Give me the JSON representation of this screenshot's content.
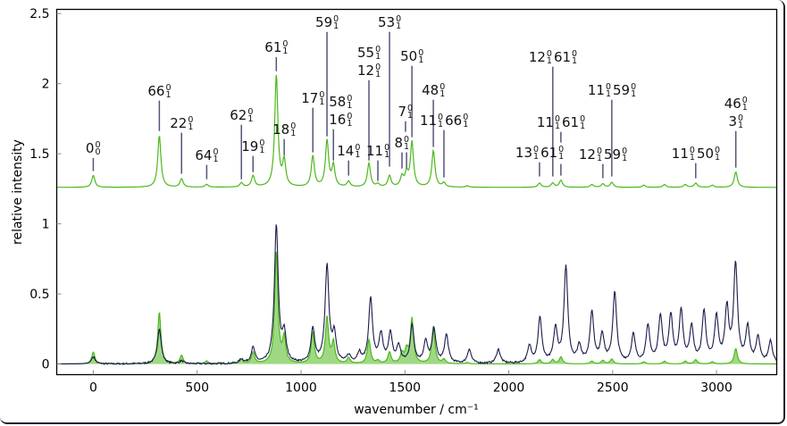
{
  "chart_data": {
    "type": "line",
    "xlabel": "wavenumber / cm⁻¹",
    "ylabel": "relative intensity",
    "xlim": [
      -176,
      3290
    ],
    "ylim": [
      -0.076,
      2.53
    ],
    "xticks": [
      "0",
      "500",
      "1000",
      "1500",
      "2000",
      "2500",
      "3000"
    ],
    "yticks": [
      "0",
      "0.5",
      "1",
      "1.5",
      "2",
      "2.5"
    ],
    "grid": false,
    "colors": {
      "simulated": "#4cb81c",
      "simulated_fill": "#9fd883",
      "experimental": "#1b1b4b",
      "annotation": "#55557a"
    },
    "simulated_offset": 1.26,
    "simulated_hwhm": 9,
    "simulated_peaks": [
      [
        0,
        0.085
      ],
      [
        318,
        0.37
      ],
      [
        425,
        0.06
      ],
      [
        546,
        0.02
      ],
      [
        713,
        0.03
      ],
      [
        769,
        0.08
      ],
      [
        881,
        0.8
      ],
      [
        919,
        0.18
      ],
      [
        1057,
        0.22
      ],
      [
        1125,
        0.33
      ],
      [
        1156,
        0.15
      ],
      [
        1229,
        0.04
      ],
      [
        1327,
        0.17
      ],
      [
        1370,
        0.02
      ],
      [
        1426,
        0.08
      ],
      [
        1486,
        0.07
      ],
      [
        1508,
        0.09
      ],
      [
        1534,
        0.32
      ],
      [
        1637,
        0.26
      ],
      [
        1688,
        0.03
      ],
      [
        1800,
        0.01
      ],
      [
        2148,
        0.03
      ],
      [
        2212,
        0.03
      ],
      [
        2251,
        0.05
      ],
      [
        2400,
        0.02
      ],
      [
        2453,
        0.025
      ],
      [
        2496,
        0.035
      ],
      [
        2650,
        0.015
      ],
      [
        2750,
        0.02
      ],
      [
        2850,
        0.02
      ],
      [
        2900,
        0.03
      ],
      [
        2980,
        0.015
      ],
      [
        3093,
        0.11
      ]
    ],
    "experimental_hwhm": 11,
    "experimental_peaks": [
      [
        0,
        0.05
      ],
      [
        318,
        0.25
      ],
      [
        425,
        0.02
      ],
      [
        713,
        0.03
      ],
      [
        769,
        0.11
      ],
      [
        881,
        0.98
      ],
      [
        919,
        0.2
      ],
      [
        1057,
        0.24
      ],
      [
        1125,
        0.69
      ],
      [
        1160,
        0.2
      ],
      [
        1230,
        0.05
      ],
      [
        1280,
        0.07
      ],
      [
        1335,
        0.46
      ],
      [
        1385,
        0.2
      ],
      [
        1430,
        0.21
      ],
      [
        1470,
        0.12
      ],
      [
        1535,
        0.27
      ],
      [
        1600,
        0.15
      ],
      [
        1640,
        0.24
      ],
      [
        1700,
        0.2
      ],
      [
        1810,
        0.1
      ],
      [
        1950,
        0.1
      ],
      [
        2100,
        0.12
      ],
      [
        2150,
        0.32
      ],
      [
        2225,
        0.24
      ],
      [
        2275,
        0.68
      ],
      [
        2340,
        0.12
      ],
      [
        2400,
        0.36
      ],
      [
        2450,
        0.2
      ],
      [
        2510,
        0.5
      ],
      [
        2600,
        0.2
      ],
      [
        2670,
        0.26
      ],
      [
        2730,
        0.33
      ],
      [
        2780,
        0.33
      ],
      [
        2830,
        0.36
      ],
      [
        2880,
        0.25
      ],
      [
        2940,
        0.36
      ],
      [
        3000,
        0.32
      ],
      [
        3050,
        0.38
      ],
      [
        3092,
        0.7
      ],
      [
        3150,
        0.25
      ],
      [
        3200,
        0.18
      ],
      [
        3260,
        0.16
      ]
    ],
    "annotations": [
      {
        "x": 0,
        "line": [
          1.376,
          1.47
        ],
        "text": [
          [
            [
              "0",
              "0",
              "0"
            ]
          ]
        ]
      },
      {
        "x": 318,
        "line": [
          1.662,
          1.879
        ],
        "text": [
          [
            [
              "66",
              "0",
              "1"
            ]
          ]
        ]
      },
      {
        "x": 425,
        "line": [
          1.357,
          1.65
        ],
        "text": [
          [
            [
              "22",
              "0",
              "1"
            ]
          ]
        ]
      },
      {
        "x": 546,
        "line": [
          1.318,
          1.42
        ],
        "text": [
          [
            [
              "64",
              "0",
              "1"
            ]
          ]
        ]
      },
      {
        "x": 713,
        "line": [
          1.318,
          1.707
        ],
        "text": [
          [
            [
              "62",
              "0",
              "1"
            ]
          ]
        ]
      },
      {
        "x": 769,
        "line": [
          1.369,
          1.484
        ],
        "text": [
          [
            [
              "19",
              "0",
              "1"
            ]
          ]
        ]
      },
      {
        "x": 881,
        "line": [
          2.089,
          2.19
        ],
        "text": [
          [
            [
              "61",
              "0",
              "1"
            ]
          ]
        ]
      },
      {
        "x": 919,
        "line": [
          1.49,
          1.605
        ],
        "text": [
          [
            [
              "18",
              "0",
              "1"
            ]
          ]
        ]
      },
      {
        "x": 1057,
        "line": [
          1.51,
          1.828
        ],
        "text": [
          [
            [
              "17",
              "0",
              "1"
            ]
          ]
        ]
      },
      {
        "x": 1125,
        "line": [
          1.624,
          2.369
        ],
        "text": [
          [
            [
              "59",
              "0",
              "1"
            ]
          ]
        ]
      },
      {
        "x": 1156,
        "line": [
          1.452,
          1.675
        ],
        "text": [
          [
            [
              "58",
              "0",
              "1"
            ]
          ],
          [
            [
              "16",
              "0",
              "1"
            ]
          ]
        ]
      },
      {
        "x": 1229,
        "line": [
          1.344,
          1.452
        ],
        "text": [
          [
            [
              "14",
              "0",
              "1"
            ]
          ]
        ]
      },
      {
        "x": 1327,
        "line": [
          1.452,
          2.025
        ],
        "text": [
          [
            [
              "55",
              "0",
              "1"
            ]
          ],
          [
            [
              "12",
              "0",
              "1"
            ]
          ]
        ]
      },
      {
        "x": 1370,
        "line": [
          1.306,
          1.452
        ],
        "text": [
          [
            [
              "11",
              "0",
              "1"
            ]
          ]
        ]
      },
      {
        "x": 1426,
        "line": [
          1.408,
          2.369
        ],
        "text": [
          [
            [
              "53",
              "0",
              "1"
            ]
          ]
        ]
      },
      {
        "x": 1486,
        "line": [
          1.395,
          1.51
        ],
        "text": [
          [
            [
              "8",
              "0",
              "1"
            ]
          ]
        ]
      },
      {
        "x": 1508,
        "line": [
          1.395,
          1.51
        ],
        "text": []
      },
      {
        "x": 1503,
        "line": [
          1.656,
          1.732
        ],
        "text": [
          [
            [
              "7",
              "0",
              "1"
            ]
          ]
        ]
      },
      {
        "x": 1534,
        "line": [
          1.618,
          2.127
        ],
        "text": [
          [
            [
              "50",
              "0",
              "1"
            ]
          ]
        ]
      },
      {
        "x": 1637,
        "line": [
          1.548,
          1.885
        ],
        "text": [
          [
            [
              "48",
              "0",
              "1"
            ]
          ]
        ]
      },
      {
        "x": 1688,
        "line": [
          1.331,
          1.669
        ],
        "text": [
          [
            [
              "11",
              "0",
              "1"
            ],
            [
              "66",
              "0",
              "1"
            ]
          ]
        ]
      },
      {
        "x": 2148,
        "line": [
          1.338,
          1.439
        ],
        "text": [
          [
            [
              "13",
              "0",
              "1"
            ],
            [
              "61",
              "0",
              "1"
            ]
          ]
        ]
      },
      {
        "x": 2212,
        "line": [
          1.338,
          2.121
        ],
        "text": [
          [
            [
              "12",
              "0",
              "1"
            ],
            [
              "61",
              "0",
              "1"
            ]
          ]
        ]
      },
      {
        "x": 2251,
        "line": [
          1.58,
          1.656
        ],
        "text": [
          [
            [
              "11",
              "0",
              "1"
            ],
            [
              "61",
              "0",
              "1"
            ]
          ]
        ]
      },
      {
        "x": 2251,
        "line": [
          1.344,
          1.427
        ],
        "text": []
      },
      {
        "x": 2453,
        "line": [
          1.325,
          1.427
        ],
        "text": [
          [
            [
              "12",
              "0",
              "1"
            ],
            [
              "59",
              "0",
              "1"
            ]
          ]
        ]
      },
      {
        "x": 2496,
        "line": [
          1.338,
          1.885
        ],
        "text": [
          [
            [
              "11",
              "0",
              "1"
            ],
            [
              "59",
              "0",
              "1"
            ]
          ]
        ]
      },
      {
        "x": 2900,
        "line": [
          1.325,
          1.433
        ],
        "text": [
          [
            [
              "11",
              "0",
              "1"
            ],
            [
              "50",
              "0",
              "1"
            ]
          ]
        ]
      },
      {
        "x": 3093,
        "line": [
          1.401,
          1.662
        ],
        "text": [
          [
            [
              "46",
              "0",
              "1"
            ]
          ],
          [
            [
              "3",
              "0",
              "1"
            ]
          ]
        ]
      }
    ]
  }
}
